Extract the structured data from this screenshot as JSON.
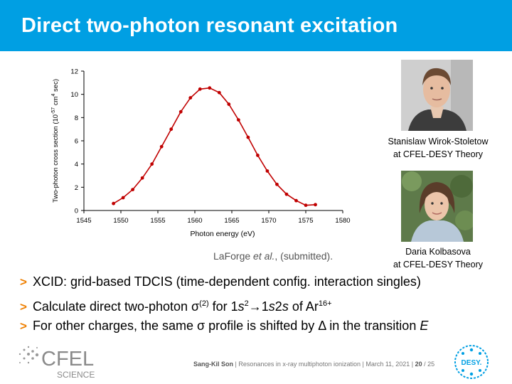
{
  "slide": {
    "title": "Direct two-photon resonant excitation",
    "citation_author": "LaForge ",
    "citation_etal": "et al.",
    "citation_rest": ", (submitted).",
    "people": [
      {
        "name": "Stanislaw Wirok-Stoletow",
        "affiliation": "at CFEL-DESY Theory"
      },
      {
        "name": "Daria Kolbasova",
        "affiliation": "at CFEL-DESY Theory"
      }
    ],
    "bullet_marker": ">",
    "bullets": [
      {
        "text": "XCID: grid-based TDCIS (time-dependent config. interaction singles)"
      },
      {
        "a": "Calculate direct two-photon σ",
        "sup1": "(2)",
        "b": " for 1",
        "c": "s",
        "sup2": "2",
        "d": "→1",
        "e": "s",
        "f": "2",
        "g": "s",
        "h": " of Ar",
        "sup3": "16+"
      },
      {
        "a": "For other charges, the same σ profile is shifted by Δ in the transition ",
        "b": "E"
      }
    ],
    "footer": {
      "author": "Sang-Kil Son",
      "sep": "|",
      "talk": "Resonances in x-ray multiphoton ionization",
      "date": "March 11, 2021",
      "page": "20",
      "total": "/ 25"
    },
    "logos": {
      "cfel_text": "CFEL",
      "cfel_sub": "SCIENCE",
      "desy_text": "DESY."
    },
    "colors": {
      "title_bar": "#009fe3",
      "curve": "#c00000",
      "bullet_marker": "#ee7f00"
    }
  },
  "chart_data": {
    "type": "line",
    "xlabel": "Photon energy (eV)",
    "ylabel": "Two-photon cross section (10",
    "ylabel_sup": "-57",
    "ylabel_mid": " cm",
    "ylabel_sup2": "4",
    "ylabel_end": " sec)",
    "xlim": [
      1545,
      1580
    ],
    "ylim": [
      0,
      12
    ],
    "xticks": [
      "1545",
      "1550",
      "1555",
      "1560",
      "1565",
      "1570",
      "1575",
      "1580"
    ],
    "yticks": [
      "0",
      "2",
      "4",
      "6",
      "8",
      "10",
      "12"
    ],
    "grid": false,
    "x": [
      1549,
      1550.3,
      1551.6,
      1552.9,
      1554.2,
      1555.5,
      1556.8,
      1558.1,
      1559.4,
      1560.7,
      1562.0,
      1563.3,
      1564.6,
      1565.9,
      1567.2,
      1568.5,
      1569.8,
      1571.1,
      1572.4,
      1573.7,
      1575.0,
      1576.3
    ],
    "y": [
      0.6,
      1.1,
      1.8,
      2.8,
      4.0,
      5.5,
      7.0,
      8.5,
      9.7,
      10.45,
      10.55,
      10.15,
      9.15,
      7.8,
      6.3,
      4.75,
      3.4,
      2.25,
      1.4,
      0.85,
      0.45,
      0.5
    ]
  }
}
